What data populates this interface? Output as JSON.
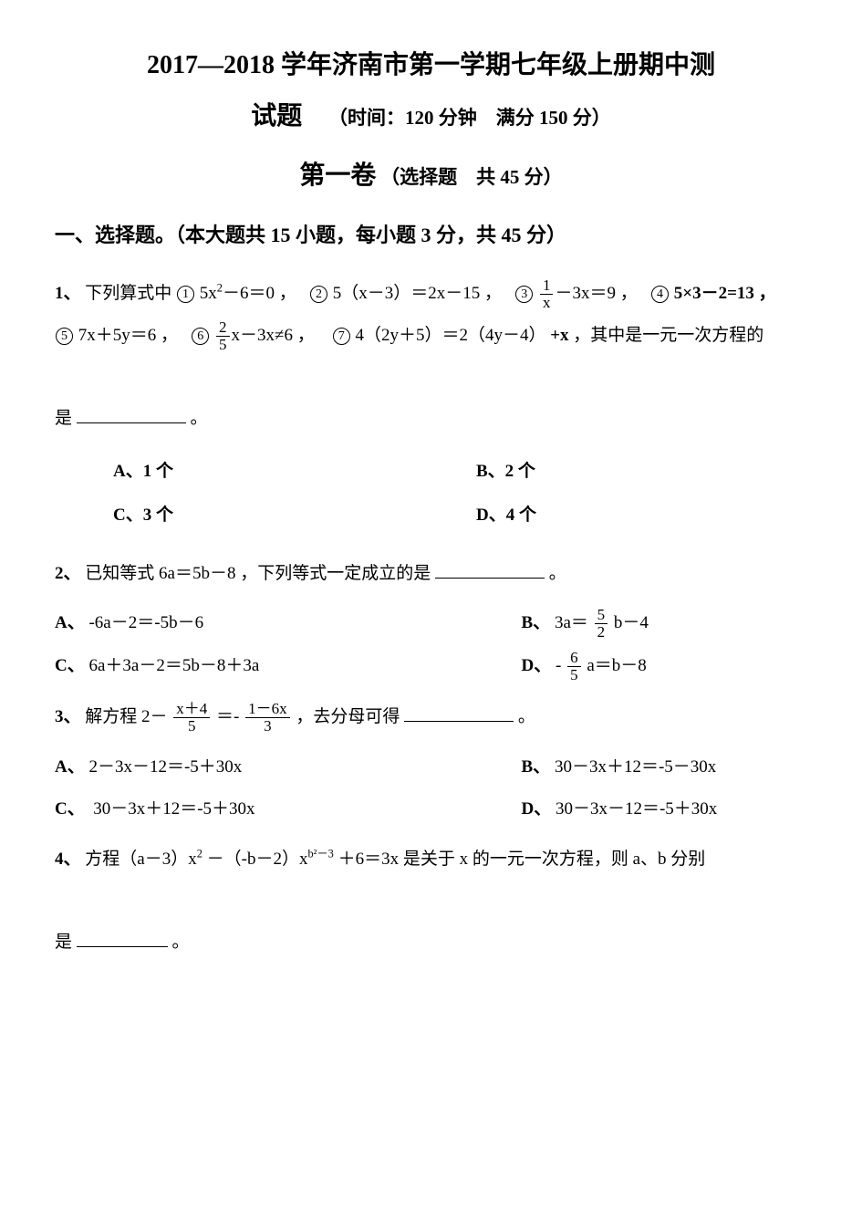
{
  "header": {
    "title_main": "2017―2018 学年济南市第一学期七年级上册期中测",
    "title_cont": "试题",
    "time_score": "（时间：120 分钟　满分 150 分）",
    "volume": "第一卷",
    "volume_desc": "（选择题　共 45 分）",
    "section1": "一、选择题。（本大题共 15 小题，每小题 3 分，共 45 分）"
  },
  "q1": {
    "num": "1、",
    "lead": "下列算式中",
    "c1": "①",
    "eq1a": "5x",
    "eq1b": "－6＝0 ，",
    "c2": "②",
    "eq2": "5（x－3）＝2x－15 ，",
    "c3": "③",
    "eq3a": "1",
    "eq3b": "x",
    "eq3c": "－3x＝9 ，",
    "c4": "④",
    "eq4": "5×3－2=13 ，",
    "c5": "⑤",
    "eq5": "7x＋5y＝6 ，",
    "c6": "⑥",
    "eq6a": "2",
    "eq6b": "5",
    "eq6c": "x－3x≠6 ，",
    "c7": "⑦",
    "eq7": "4（2y＋5）＝2（4y－4）",
    "eq7b": "+x",
    "tail1": "，其中是一元一次方程的",
    "tail2": "是",
    "period": "。",
    "optA": "A、1 个",
    "optB": "B、2 个",
    "optC": "C、3 个",
    "optD": "D、4 个"
  },
  "q2": {
    "num": "2、",
    "body": "已知等式 6a＝5b－8 ，下列等式一定成立的是",
    "period": "。",
    "optA_label": "A、",
    "optA": "-6a－2＝-5b－6",
    "optB_label": "B、",
    "optB_pre": "3a＝",
    "optB_num": "5",
    "optB_den": "2",
    "optB_post": "b－4",
    "optC_label": "C、",
    "optC": "6a＋3a－2＝5b－8＋3a",
    "optD_label": "D、",
    "optD_pre": "-",
    "optD_num": "6",
    "optD_den": "5",
    "optD_post": "a＝b－8"
  },
  "q3": {
    "num": "3、",
    "lead": "解方程 2－",
    "f1n": "x＋4",
    "f1d": "5",
    "mid": "＝-",
    "f2n": "1－6x",
    "f2d": "3",
    "tail": " ，去分母可得",
    "period": "。",
    "optA_label": "A、",
    "optA": "2－3x－12＝-5＋30x",
    "optB_label": "B、",
    "optB": "30－3x＋12＝-5－30x",
    "optC_label": "C、",
    "optC": "30－3x＋12＝-5＋30x",
    "optD_label": "D、",
    "optD": "30－3x－12＝-5＋30x"
  },
  "q4": {
    "num": "4、",
    "lead": "方程（a－3）x",
    "mid1": "－（-b－2）x",
    "exp2": "b²－3",
    "mid2": "＋6＝3x",
    "tail": " 是关于  x  的一元一次方程，则  a、b  分别",
    "line2": "是",
    "period": "。"
  },
  "style": {
    "bg": "#ffffff",
    "fg": "#000000",
    "title_fontsize": 28,
    "body_fontsize": 19,
    "font_family": "SimSun"
  }
}
